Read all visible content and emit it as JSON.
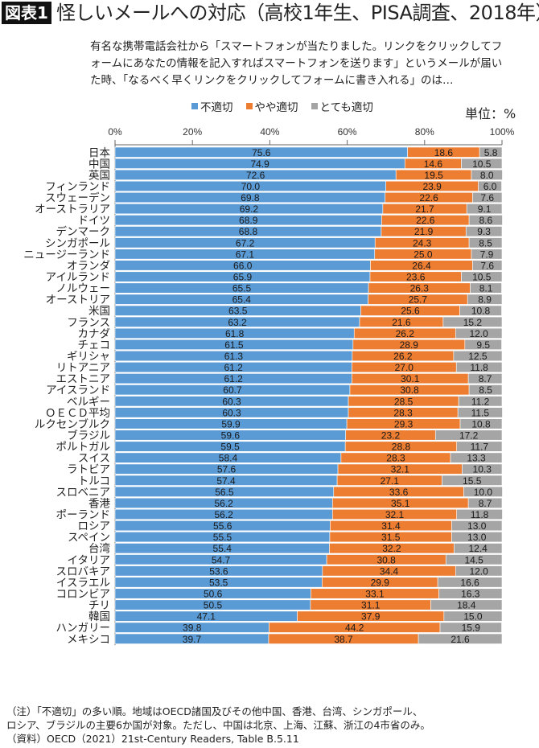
{
  "header": {
    "badge": "図表1",
    "title": "怪しいメールへの対応（高校1年生、PISA調査、2018年）"
  },
  "question": "有名な携帯電話会社から「スマートフォンが当たりました。リンクをクリックしてフォームにあなたの情報を記入すればスマートフォンを送ります」というメールが届いた時、「なるべく早くリンクをクリックしてフォームに書き入れる」のは…",
  "unit": "単位：%",
  "notes": [
    "（注）「不適切」の多い順。地域はOECD諸国及びその他中国、香港、台湾、シンガポール、",
    "ロシア、ブラジルの主要6か国が対象。ただし、中国は北京、上海、江蘇、浙江の4市省のみ。",
    "（資料）OECD（2021）21st-Century Readers, Table B.5.11"
  ],
  "chart_data": {
    "type": "bar",
    "orientation": "horizontal",
    "stacked": "100%",
    "xlim": [
      0,
      100
    ],
    "xticks": [
      "0%",
      "20%",
      "40%",
      "60%",
      "80%",
      "100%"
    ],
    "legend_position": "top",
    "grid": false,
    "categories": [
      "日本",
      "中国",
      "英国",
      "フィンランド",
      "スウェーデン",
      "オーストラリア",
      "ドイツ",
      "デンマーク",
      "シンガポール",
      "ニュージーランド",
      "オランダ",
      "アイルランド",
      "ノルウェー",
      "オーストリア",
      "米国",
      "フランス",
      "カナダ",
      "チェコ",
      "ギリシャ",
      "リトアニア",
      "エストニア",
      "アイスランド",
      "ベルギー",
      "ＯＥＣＤ平均",
      "ルクセンブルク",
      "ブラジル",
      "ポルトガル",
      "スイス",
      "ラトビア",
      "トルコ",
      "スロベニア",
      "香港",
      "ポーランド",
      "ロシア",
      "スペイン",
      "台湾",
      "イタリア",
      "スロバキア",
      "イスラエル",
      "コロンビア",
      "チリ",
      "韓国",
      "ハンガリー",
      "メキシコ"
    ],
    "series": [
      {
        "name": "不適切",
        "color": "#5b9bd5",
        "values": [
          75.6,
          74.9,
          72.6,
          70.0,
          69.8,
          69.2,
          68.9,
          68.8,
          67.2,
          67.1,
          66.0,
          65.9,
          65.5,
          65.4,
          63.5,
          63.2,
          61.8,
          61.5,
          61.3,
          61.2,
          61.2,
          60.7,
          60.3,
          60.3,
          59.9,
          59.6,
          59.5,
          58.4,
          57.6,
          57.4,
          56.5,
          56.2,
          56.2,
          55.6,
          55.5,
          55.4,
          54.7,
          53.6,
          53.5,
          50.6,
          50.5,
          47.1,
          39.8,
          39.7
        ]
      },
      {
        "name": "やや適切",
        "color": "#ed7d31",
        "values": [
          18.6,
          14.6,
          19.5,
          23.9,
          22.6,
          21.7,
          22.6,
          21.9,
          24.3,
          25.0,
          26.4,
          23.6,
          26.3,
          25.7,
          25.6,
          21.6,
          26.2,
          28.9,
          26.2,
          27.0,
          30.1,
          30.8,
          28.5,
          28.3,
          29.3,
          23.2,
          28.8,
          28.3,
          32.1,
          27.1,
          33.6,
          35.1,
          32.1,
          31.4,
          31.5,
          32.2,
          30.8,
          34.4,
          29.9,
          33.1,
          31.1,
          37.9,
          44.2,
          38.7
        ]
      },
      {
        "name": "とても適切",
        "color": "#a5a5a5",
        "values": [
          5.8,
          10.5,
          8.0,
          6.0,
          7.6,
          9.1,
          8.6,
          9.3,
          8.5,
          7.9,
          7.6,
          10.5,
          8.1,
          8.9,
          10.8,
          15.2,
          12.0,
          9.5,
          12.5,
          11.8,
          8.7,
          8.5,
          11.2,
          11.5,
          10.8,
          17.2,
          11.7,
          13.3,
          10.3,
          15.5,
          10.0,
          8.7,
          11.8,
          13.0,
          13.0,
          12.4,
          14.5,
          12.0,
          16.6,
          16.3,
          18.4,
          15.0,
          15.9,
          21.6
        ]
      }
    ]
  }
}
